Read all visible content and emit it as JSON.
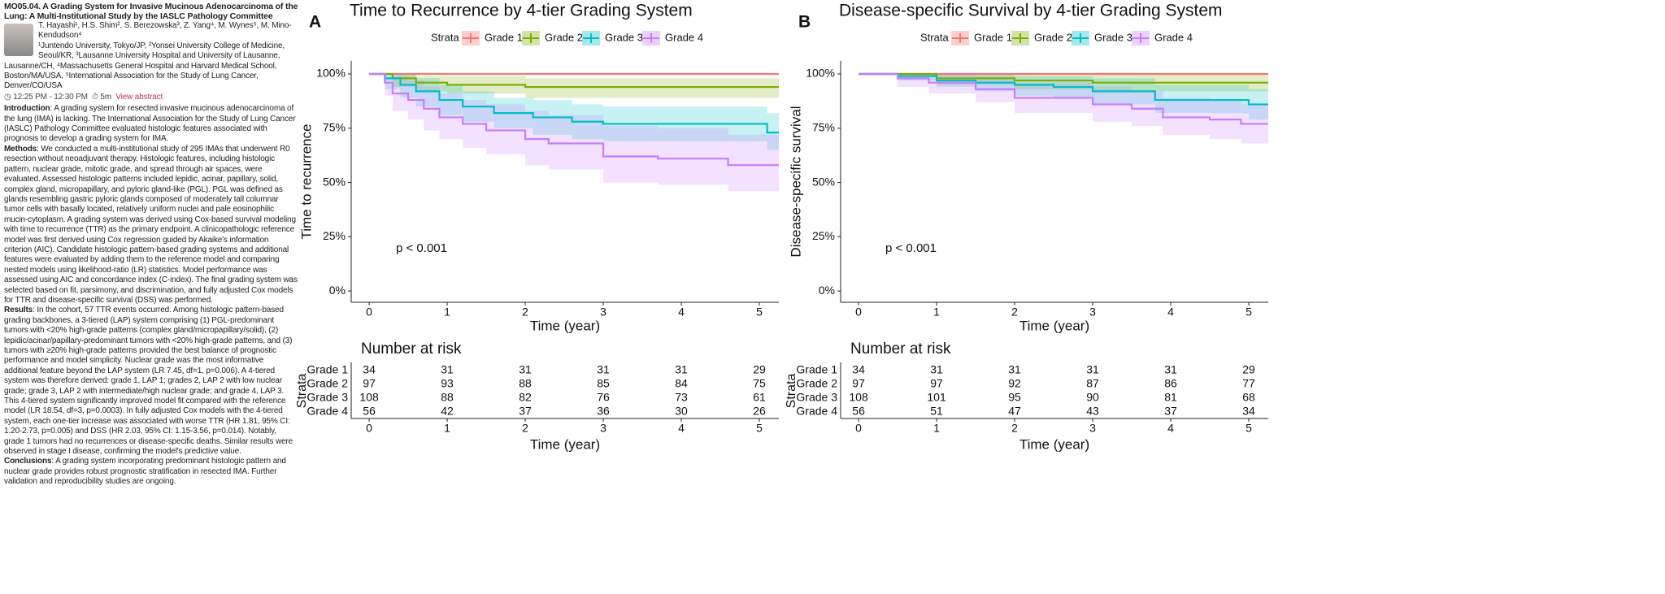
{
  "abstract": {
    "session_title": "MO05.04.  A Grading System for Invasive Mucinous Adenocarcinoma of the Lung: A Multi-Institutional Study by the IASLC Pathology Committee",
    "authors": "T. Hayashi¹, H.S. Shim², S. Berezowska³, Z. Yang⁴, M. Wynes⁵, M. Mino-Kendudson⁴",
    "affiliations": "¹Juntendo University, Tokyo/JP, ²Yonsei University College of Medicine, Seoul/KR, ³Lausanne University Hospital and University of Lausanne, Lausanne/CH, ⁴Massachusetts General Hospital and Harvard Medical School, Boston/MA/USA, ⁵International Association for the Study of Lung Cancer, Denver/CO/USA",
    "time": "12:25 PM - 12:30 PM",
    "duration": "5m",
    "link": "View abstract",
    "sections": [
      {
        "heading": "Introduction",
        "text": ": A grading system for resected invasive mucinous adenocarcinoma of the lung (IMA) is lacking. The International Association for the Study of Lung Cancer (IASLC) Pathology Committee evaluated histologic features associated with prognosis to develop a grading system for IMA."
      },
      {
        "heading": "Methods",
        "text": ": We conducted a multi-institutional study of 295 IMAs that underwent R0 resection without neoadjuvant therapy. Histologic features, including histologic pattern, nuclear grade, mitotic grade, and spread through air spaces, were evaluated. Assessed histologic patterns included lepidic, acinar, papillary, solid, complex gland, micropapillary, and pyloric gland-like (PGL). PGL was defined as glands resembling gastric pyloric glands composed of moderately tall columnar tumor cells with basally located, relatively uniform nuclei and pale eosinophilic mucin-cytoplasm. A grading system was derived using Cox-based survival modeling with time to recurrence (TTR) as the primary endpoint. A clinicopathologic reference model was first derived using Cox regression guided by Akaike's information criterion (AIC). Candidate histologic pattern-based grading systems and additional features were evaluated by adding them to the reference model and comparing nested models using likelihood-ratio (LR) statistics. Model performance was assessed using AIC and concordance index (C-index). The final grading system was selected based on fit, parsimony, and discrimination, and fully adjusted Cox models for TTR and disease-specific survival (DSS) was performed."
      },
      {
        "heading": "Results",
        "text": ": In the cohort, 57 TTR events occurred. Among histologic pattern-based grading backbones, a 3-tiered (LAP) system comprising (1) PGL-predominant tumors with <20% high-grade patterns (complex gland/micropapillary/solid), (2) lepidic/acinar/papillary-predominant tumors with <20% high-grade patterns, and (3) tumors with ≥20% high-grade patterns provided the best balance of prognostic performance and model simplicity. Nuclear grade was the most informative additional feature beyond the LAP system (LR 7.45, df=1, p=0.006). A 4-tiered system was therefore derived: grade 1, LAP 1; grades 2, LAP 2 with low nuclear grade; grade 3, LAP 2 with intermediate/high nuclear grade; and grade 4, LAP 3. This 4-tiered system significantly improved model fit compared with the reference model (LR 18.54, df=3, p=0.0003). In fully adjusted Cox models with the 4-tiered system, each one-tier increase was associated with worse TTR (HR 1.81, 95% CI: 1.20-2.73, p=0.005) and DSS (HR 2.03, 95% CI: 1.15-3.56, p=0.014). Notably, grade 1 tumors had no recurrences or disease-specific deaths. Similar results were observed in stage I disease, confirming the model's predictive value."
      },
      {
        "heading": "Conclusions",
        "text": ": A grading system incorporating predominant histologic pattern and nuclear grade provides robust prognostic stratification in resected IMA. Further validation and reproducibility studies are ongoing."
      }
    ]
  },
  "chart_data": [
    {
      "type": "step",
      "panel": "A",
      "title": "Time to Recurrence by 4-tier Grading System",
      "legend_title": "Strata",
      "x_label": "Time (year)",
      "y_label": "Time to recurrence",
      "annotation": "p < 0.001",
      "xlim": [
        -0.23,
        5.25
      ],
      "xticks": [
        0,
        1,
        2,
        3,
        4,
        5
      ],
      "ylim": [
        -5.2,
        106
      ],
      "yticks": [
        {
          "value": 0,
          "label": "0%"
        },
        {
          "value": 25,
          "label": "25%"
        },
        {
          "value": 50,
          "label": "50%"
        },
        {
          "value": 75,
          "label": "75%"
        },
        {
          "value": 100,
          "label": "100%"
        }
      ],
      "series": [
        {
          "name": "Grade 1",
          "color": "#F8766D",
          "x": [
            0,
            5.25
          ],
          "values": [
            100,
            100
          ],
          "lower": [
            100,
            100
          ],
          "upper": [
            100,
            100
          ]
        },
        {
          "name": "Grade 2",
          "color": "#7CAE00",
          "x": [
            0,
            0.3,
            0.6,
            1,
            2,
            5.25
          ],
          "values": [
            100,
            98,
            96,
            95,
            94,
            94
          ],
          "lower": [
            100,
            94,
            92,
            91,
            89,
            89
          ],
          "upper": [
            100,
            100,
            99,
            99,
            98,
            98
          ]
        },
        {
          "name": "Grade 3",
          "color": "#00BFC4",
          "x": [
            0,
            0.2,
            0.4,
            0.6,
            0.9,
            1.2,
            1.6,
            2.1,
            2.6,
            3,
            5.1,
            5.25
          ],
          "values": [
            100,
            98,
            95,
            92,
            88,
            85,
            82,
            80,
            78,
            77,
            73,
            73
          ],
          "lower": [
            100,
            93,
            89,
            85,
            81,
            78,
            75,
            72,
            70,
            69,
            65,
            65
          ],
          "upper": [
            100,
            100,
            100,
            98,
            95,
            92,
            89,
            88,
            86,
            85,
            82,
            82
          ]
        },
        {
          "name": "Grade 4",
          "color": "#C77CFF",
          "x": [
            0,
            0.2,
            0.3,
            0.5,
            0.7,
            0.9,
            1.2,
            1.5,
            2,
            2.3,
            3,
            3.7,
            4.6,
            5.25
          ],
          "values": [
            100,
            96,
            91,
            88,
            84,
            80,
            77,
            74,
            70,
            68,
            62,
            61,
            58,
            58
          ],
          "lower": [
            100,
            90,
            83,
            79,
            74,
            70,
            66,
            63,
            58,
            56,
            50,
            49,
            46,
            46
          ],
          "upper": [
            100,
            100,
            99,
            97,
            94,
            91,
            88,
            86,
            83,
            81,
            76,
            75,
            72,
            72
          ]
        }
      ],
      "risk_table": {
        "title": "Number at risk",
        "y_label": "Strata",
        "x_label": "Time (year)",
        "times": [
          0,
          1,
          2,
          3,
          4,
          5
        ],
        "rows": [
          "Grade 1",
          "Grade 2",
          "Grade 3",
          "Grade 4"
        ],
        "counts": [
          [
            34,
            31,
            31,
            31,
            31,
            29
          ],
          [
            97,
            93,
            88,
            85,
            84,
            75
          ],
          [
            108,
            88,
            82,
            76,
            73,
            61
          ],
          [
            56,
            42,
            37,
            36,
            30,
            26
          ]
        ]
      }
    },
    {
      "type": "step",
      "panel": "B",
      "title": "Disease-specific Survival by 4-tier Grading System",
      "legend_title": "Strata",
      "x_label": "Time (year)",
      "y_label": "Disease-specific survival",
      "annotation": "p < 0.001",
      "xlim": [
        -0.23,
        5.25
      ],
      "xticks": [
        0,
        1,
        2,
        3,
        4,
        5
      ],
      "ylim": [
        -5.2,
        106
      ],
      "yticks": [
        {
          "value": 0,
          "label": "0%"
        },
        {
          "value": 25,
          "label": "25%"
        },
        {
          "value": 50,
          "label": "50%"
        },
        {
          "value": 75,
          "label": "75%"
        },
        {
          "value": 100,
          "label": "100%"
        }
      ],
      "series": [
        {
          "name": "Grade 1",
          "color": "#F8766D",
          "x": [
            0,
            5.25
          ],
          "values": [
            100,
            100
          ],
          "lower": [
            100,
            100
          ],
          "upper": [
            100,
            100
          ]
        },
        {
          "name": "Grade 2",
          "color": "#7CAE00",
          "x": [
            0,
            1,
            2,
            3,
            5.25
          ],
          "values": [
            100,
            98,
            97,
            96,
            96
          ],
          "lower": [
            100,
            95,
            93,
            92,
            92
          ],
          "upper": [
            100,
            100,
            100,
            100,
            100
          ]
        },
        {
          "name": "Grade 3",
          "color": "#00BFC4",
          "x": [
            0,
            0.5,
            1,
            1.5,
            2,
            2.5,
            3,
            3.8,
            4.5,
            5,
            5.25
          ],
          "values": [
            100,
            99,
            97,
            96,
            95,
            94,
            92,
            88,
            88,
            86,
            86
          ],
          "lower": [
            100,
            97,
            94,
            92,
            90,
            89,
            86,
            82,
            82,
            79,
            79
          ],
          "upper": [
            100,
            100,
            100,
            100,
            99,
            99,
            98,
            95,
            95,
            93,
            93
          ]
        },
        {
          "name": "Grade 4",
          "color": "#C77CFF",
          "x": [
            0,
            0.5,
            0.9,
            1.5,
            2,
            3,
            3.5,
            3.9,
            4.5,
            4.9,
            5.25
          ],
          "values": [
            100,
            98,
            96,
            93,
            89,
            86,
            84,
            80,
            79,
            77,
            77
          ],
          "lower": [
            100,
            94,
            91,
            87,
            82,
            78,
            76,
            72,
            70,
            68,
            68
          ],
          "upper": [
            100,
            100,
            100,
            99,
            96,
            94,
            92,
            89,
            88,
            86,
            86
          ]
        }
      ],
      "risk_table": {
        "title": "Number at risk",
        "y_label": "Strata",
        "x_label": "Time (year)",
        "times": [
          0,
          1,
          2,
          3,
          4,
          5
        ],
        "rows": [
          "Grade 1",
          "Grade 2",
          "Grade 3",
          "Grade 4"
        ],
        "counts": [
          [
            34,
            31,
            31,
            31,
            31,
            29
          ],
          [
            97,
            97,
            92,
            87,
            86,
            77
          ],
          [
            108,
            101,
            95,
            90,
            81,
            68
          ],
          [
            56,
            51,
            47,
            43,
            37,
            34
          ]
        ]
      }
    }
  ]
}
